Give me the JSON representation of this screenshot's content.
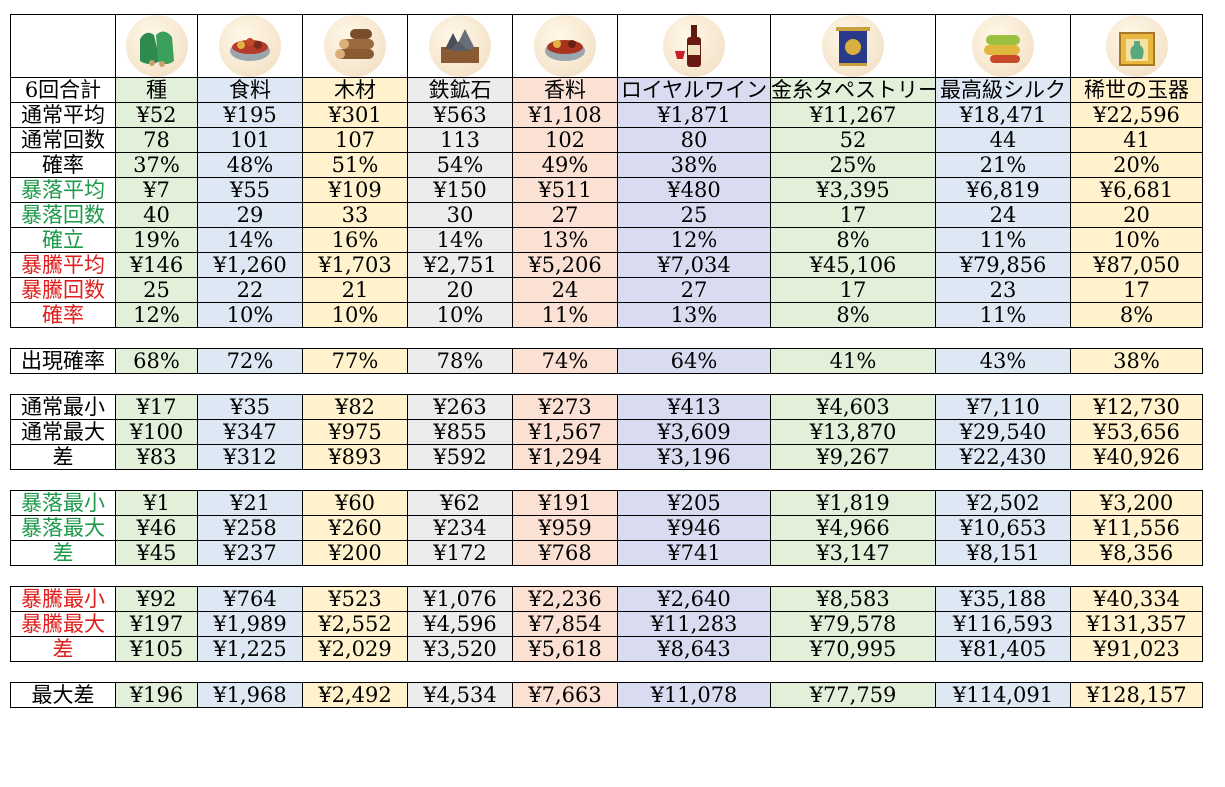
{
  "columns": [
    "種",
    "食料",
    "木材",
    "鉄鉱石",
    "香料",
    "ロイヤルワイン",
    "金糸タペストリー",
    "最高級シルク",
    "稀世の玉器"
  ],
  "icons": [
    "seed-bag-icon",
    "food-bowl-icon",
    "wood-logs-icon",
    "iron-ore-icon",
    "spice-bowl-icon",
    "wine-bottle-icon",
    "tapestry-icon",
    "silk-roll-icon",
    "jade-box-icon"
  ],
  "corner_label": "6回合計",
  "blocks": [
    {
      "id": "main",
      "rows": [
        {
          "label": "通常平均",
          "color": "black",
          "values": [
            "¥52",
            "¥195",
            "¥301",
            "¥563",
            "¥1,108",
            "¥1,871",
            "¥11,267",
            "¥18,471",
            "¥22,596"
          ]
        },
        {
          "label": "通常回数",
          "color": "black",
          "values": [
            "78",
            "101",
            "107",
            "113",
            "102",
            "80",
            "52",
            "44",
            "41"
          ]
        },
        {
          "label": "確率",
          "color": "black",
          "values": [
            "37%",
            "48%",
            "51%",
            "54%",
            "49%",
            "38%",
            "25%",
            "21%",
            "20%"
          ]
        },
        {
          "label": "暴落平均",
          "color": "green",
          "values": [
            "¥7",
            "¥55",
            "¥109",
            "¥150",
            "¥511",
            "¥480",
            "¥3,395",
            "¥6,819",
            "¥6,681"
          ]
        },
        {
          "label": "暴落回数",
          "color": "green",
          "values": [
            "40",
            "29",
            "33",
            "30",
            "27",
            "25",
            "17",
            "24",
            "20"
          ]
        },
        {
          "label": "確立",
          "color": "green",
          "values": [
            "19%",
            "14%",
            "16%",
            "14%",
            "13%",
            "12%",
            "8%",
            "11%",
            "10%"
          ]
        },
        {
          "label": "暴騰平均",
          "color": "red",
          "values": [
            "¥146",
            "¥1,260",
            "¥1,703",
            "¥2,751",
            "¥5,206",
            "¥7,034",
            "¥45,106",
            "¥79,856",
            "¥87,050"
          ]
        },
        {
          "label": "暴騰回数",
          "color": "red",
          "values": [
            "25",
            "22",
            "21",
            "20",
            "24",
            "27",
            "17",
            "23",
            "17"
          ]
        },
        {
          "label": "確率",
          "color": "red",
          "values": [
            "12%",
            "10%",
            "10%",
            "10%",
            "11%",
            "13%",
            "8%",
            "11%",
            "8%"
          ]
        }
      ]
    },
    {
      "id": "appear",
      "rows": [
        {
          "label": "出現確率",
          "color": "black",
          "values": [
            "68%",
            "72%",
            "77%",
            "78%",
            "74%",
            "64%",
            "41%",
            "43%",
            "38%"
          ]
        }
      ]
    },
    {
      "id": "normal",
      "rows": [
        {
          "label": "通常最小",
          "color": "black",
          "values": [
            "¥17",
            "¥35",
            "¥82",
            "¥263",
            "¥273",
            "¥413",
            "¥4,603",
            "¥7,110",
            "¥12,730"
          ]
        },
        {
          "label": "通常最大",
          "color": "black",
          "values": [
            "¥100",
            "¥347",
            "¥975",
            "¥855",
            "¥1,567",
            "¥3,609",
            "¥13,870",
            "¥29,540",
            "¥53,656"
          ]
        },
        {
          "label": "差",
          "color": "black",
          "values": [
            "¥83",
            "¥312",
            "¥893",
            "¥592",
            "¥1,294",
            "¥3,196",
            "¥9,267",
            "¥22,430",
            "¥40,926"
          ]
        }
      ]
    },
    {
      "id": "crash",
      "rows": [
        {
          "label": "暴落最小",
          "color": "green",
          "values": [
            "¥1",
            "¥21",
            "¥60",
            "¥62",
            "¥191",
            "¥205",
            "¥1,819",
            "¥2,502",
            "¥3,200"
          ]
        },
        {
          "label": "暴落最大",
          "color": "green",
          "values": [
            "¥46",
            "¥258",
            "¥260",
            "¥234",
            "¥959",
            "¥946",
            "¥4,966",
            "¥10,653",
            "¥11,556"
          ]
        },
        {
          "label": "差",
          "color": "green",
          "values": [
            "¥45",
            "¥237",
            "¥200",
            "¥172",
            "¥768",
            "¥741",
            "¥3,147",
            "¥8,151",
            "¥8,356"
          ]
        }
      ]
    },
    {
      "id": "surge",
      "rows": [
        {
          "label": "暴騰最小",
          "color": "red",
          "values": [
            "¥92",
            "¥764",
            "¥523",
            "¥1,076",
            "¥2,236",
            "¥2,640",
            "¥8,583",
            "¥35,188",
            "¥40,334"
          ]
        },
        {
          "label": "暴騰最大",
          "color": "red",
          "values": [
            "¥197",
            "¥1,989",
            "¥2,552",
            "¥4,596",
            "¥7,854",
            "¥11,283",
            "¥79,578",
            "¥116,593",
            "¥131,357"
          ]
        },
        {
          "label": "差",
          "color": "red",
          "values": [
            "¥105",
            "¥1,225",
            "¥2,029",
            "¥3,520",
            "¥5,618",
            "¥8,643",
            "¥70,995",
            "¥81,405",
            "¥91,023"
          ]
        }
      ]
    },
    {
      "id": "maxdiff",
      "rows": [
        {
          "label": "最大差",
          "color": "black",
          "values": [
            "¥196",
            "¥1,968",
            "¥2,492",
            "¥4,534",
            "¥7,663",
            "¥11,078",
            "¥77,759",
            "¥114,091",
            "¥128,157"
          ]
        }
      ]
    }
  ],
  "column_colors": [
    "#e2efd9",
    "#dde8f4",
    "#fff2cc",
    "#ececec",
    "#fbe1d4",
    "#d9dcf0",
    "#e2efd9",
    "#dde8f4",
    "#fff2cc"
  ],
  "label_colors": {
    "black": "#000000",
    "green": "#1e9a4a",
    "red": "#e0201e"
  }
}
